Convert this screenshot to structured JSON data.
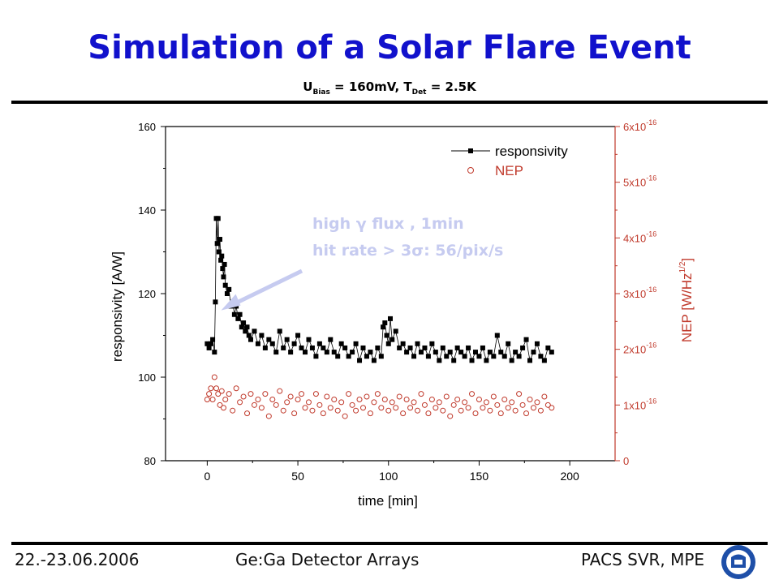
{
  "header": {
    "title": "Simulation of a Solar Flare Event",
    "subtitle_u": "U",
    "subtitle_u_sub": "Bias",
    "subtitle_mid": " = 160mV, T",
    "subtitle_t_sub": "Det",
    "subtitle_end": " = 2.5K"
  },
  "footer": {
    "date": "22.-23.06.2006",
    "center": "Ge:Ga Detector Arrays",
    "right": "PACS SVR, MPE"
  },
  "colors": {
    "title": "#1111cc",
    "responsivity": "#000000",
    "nep": "#c0392b",
    "annotation": "#c6cbf0"
  },
  "chart_data": {
    "type": "scatter",
    "xlabel": "time [min]",
    "ylabel_left": "responsivity [A/W]",
    "ylabel_right": "NEP [W/Hz",
    "ylabel_right_sup": "1/2",
    "ylabel_right_end": "]",
    "xlim": [
      -23,
      225
    ],
    "ylim_left": [
      80,
      160
    ],
    "ylim_right": [
      0,
      6e-16
    ],
    "x_ticks": [
      0,
      50,
      100,
      150,
      200
    ],
    "x_tick_labels": [
      "0",
      "50",
      "100",
      "150",
      "200"
    ],
    "y_left_ticks": [
      80,
      100,
      120,
      140,
      160
    ],
    "y_left_tick_labels": [
      "80",
      "100",
      "120",
      "140",
      "160"
    ],
    "y_right_tick_labels": [
      {
        "mant": "0",
        "exp": ""
      },
      {
        "mant": "1x10",
        "exp": "-16"
      },
      {
        "mant": "2x10",
        "exp": "-16"
      },
      {
        "mant": "3x10",
        "exp": "-16"
      },
      {
        "mant": "4x10",
        "exp": "-16"
      },
      {
        "mant": "5x10",
        "exp": "-16"
      },
      {
        "mant": "6x10",
        "exp": "-16"
      }
    ],
    "annotation": {
      "line1": "high γ flux , 1min",
      "line2": "hit rate > 3σ: 56/pix/s",
      "arrow_to": [
        5,
        116
      ]
    },
    "legend": {
      "placement": "top-right",
      "entries": [
        "responsivity",
        "NEP"
      ]
    },
    "series": [
      {
        "name": "responsivity",
        "marker": "filled-square",
        "line": true,
        "points": [
          [
            0,
            108
          ],
          [
            1,
            107
          ],
          [
            2,
            108
          ],
          [
            3,
            109
          ],
          [
            4,
            106
          ],
          [
            4.5,
            118
          ],
          [
            5,
            138
          ],
          [
            5.5,
            132
          ],
          [
            6,
            138
          ],
          [
            6.5,
            130
          ],
          [
            7,
            133
          ],
          [
            7.5,
            128
          ],
          [
            8,
            129
          ],
          [
            8.5,
            126
          ],
          [
            9,
            124
          ],
          [
            9.5,
            127
          ],
          [
            10,
            122
          ],
          [
            11,
            120
          ],
          [
            12,
            121
          ],
          [
            13,
            117
          ],
          [
            14,
            118
          ],
          [
            15,
            115
          ],
          [
            16,
            117
          ],
          [
            17,
            114
          ],
          [
            18,
            115
          ],
          [
            19,
            112
          ],
          [
            20,
            113
          ],
          [
            21,
            111
          ],
          [
            22,
            112
          ],
          [
            23,
            110
          ],
          [
            24,
            109
          ],
          [
            26,
            111
          ],
          [
            28,
            108
          ],
          [
            30,
            110
          ],
          [
            32,
            107
          ],
          [
            34,
            109
          ],
          [
            36,
            108
          ],
          [
            38,
            106
          ],
          [
            40,
            111
          ],
          [
            42,
            107
          ],
          [
            44,
            109
          ],
          [
            46,
            106
          ],
          [
            48,
            108
          ],
          [
            50,
            110
          ],
          [
            52,
            107
          ],
          [
            54,
            106
          ],
          [
            56,
            109
          ],
          [
            58,
            107
          ],
          [
            60,
            105
          ],
          [
            62,
            108
          ],
          [
            64,
            107
          ],
          [
            66,
            106
          ],
          [
            68,
            109
          ],
          [
            70,
            106
          ],
          [
            72,
            105
          ],
          [
            74,
            108
          ],
          [
            76,
            107
          ],
          [
            78,
            105
          ],
          [
            80,
            106
          ],
          [
            82,
            108
          ],
          [
            84,
            104
          ],
          [
            86,
            107
          ],
          [
            88,
            105
          ],
          [
            90,
            106
          ],
          [
            92,
            104
          ],
          [
            94,
            107
          ],
          [
            96,
            105
          ],
          [
            97,
            112
          ],
          [
            98,
            113
          ],
          [
            99,
            110
          ],
          [
            100,
            108
          ],
          [
            101,
            114
          ],
          [
            102,
            109
          ],
          [
            104,
            111
          ],
          [
            106,
            107
          ],
          [
            108,
            108
          ],
          [
            110,
            106
          ],
          [
            112,
            107
          ],
          [
            114,
            105
          ],
          [
            116,
            108
          ],
          [
            118,
            106
          ],
          [
            120,
            107
          ],
          [
            122,
            105
          ],
          [
            124,
            108
          ],
          [
            126,
            106
          ],
          [
            128,
            104
          ],
          [
            130,
            107
          ],
          [
            132,
            105
          ],
          [
            134,
            106
          ],
          [
            136,
            104
          ],
          [
            138,
            107
          ],
          [
            140,
            106
          ],
          [
            142,
            105
          ],
          [
            144,
            107
          ],
          [
            146,
            104
          ],
          [
            148,
            106
          ],
          [
            150,
            105
          ],
          [
            152,
            107
          ],
          [
            154,
            104
          ],
          [
            156,
            106
          ],
          [
            158,
            105
          ],
          [
            160,
            110
          ],
          [
            162,
            106
          ],
          [
            164,
            105
          ],
          [
            166,
            108
          ],
          [
            168,
            104
          ],
          [
            170,
            106
          ],
          [
            172,
            105
          ],
          [
            174,
            107
          ],
          [
            176,
            109
          ],
          [
            178,
            104
          ],
          [
            180,
            106
          ],
          [
            182,
            108
          ],
          [
            184,
            105
          ],
          [
            186,
            104
          ],
          [
            188,
            107
          ],
          [
            190,
            106
          ]
        ]
      },
      {
        "name": "NEP",
        "marker": "open-circle",
        "line": false,
        "points": [
          [
            0,
            1.1e-16
          ],
          [
            1,
            1.2e-16
          ],
          [
            2,
            1.3e-16
          ],
          [
            3,
            1.1e-16
          ],
          [
            4,
            1.5e-16
          ],
          [
            5,
            1.3e-16
          ],
          [
            6,
            1.2e-16
          ],
          [
            7,
            1e-16
          ],
          [
            8,
            1.25e-16
          ],
          [
            9,
            9.5e-17
          ],
          [
            10,
            1.1e-16
          ],
          [
            12,
            1.2e-16
          ],
          [
            14,
            9e-17
          ],
          [
            16,
            1.3e-16
          ],
          [
            18,
            1.05e-16
          ],
          [
            20,
            1.15e-16
          ],
          [
            22,
            8.5e-17
          ],
          [
            24,
            1.2e-16
          ],
          [
            26,
            1e-16
          ],
          [
            28,
            1.1e-16
          ],
          [
            30,
            9.5e-17
          ],
          [
            32,
            1.2e-16
          ],
          [
            34,
            8e-17
          ],
          [
            36,
            1.1e-16
          ],
          [
            38,
            1e-16
          ],
          [
            40,
            1.25e-16
          ],
          [
            42,
            9e-17
          ],
          [
            44,
            1.05e-16
          ],
          [
            46,
            1.15e-16
          ],
          [
            48,
            8.5e-17
          ],
          [
            50,
            1.1e-16
          ],
          [
            52,
            1.2e-16
          ],
          [
            54,
            9.5e-17
          ],
          [
            56,
            1.05e-16
          ],
          [
            58,
            9e-17
          ],
          [
            60,
            1.2e-16
          ],
          [
            62,
            1e-16
          ],
          [
            64,
            8.5e-17
          ],
          [
            66,
            1.15e-16
          ],
          [
            68,
            9.5e-17
          ],
          [
            70,
            1.1e-16
          ],
          [
            72,
            9e-17
          ],
          [
            74,
            1.05e-16
          ],
          [
            76,
            8e-17
          ],
          [
            78,
            1.2e-16
          ],
          [
            80,
            1e-16
          ],
          [
            82,
            9e-17
          ],
          [
            84,
            1.1e-16
          ],
          [
            86,
            9.5e-17
          ],
          [
            88,
            1.15e-16
          ],
          [
            90,
            8.5e-17
          ],
          [
            92,
            1.05e-16
          ],
          [
            94,
            1.2e-16
          ],
          [
            96,
            9.5e-17
          ],
          [
            98,
            1.1e-16
          ],
          [
            100,
            9e-17
          ],
          [
            102,
            1.05e-16
          ],
          [
            104,
            9.5e-17
          ],
          [
            106,
            1.15e-16
          ],
          [
            108,
            8.5e-17
          ],
          [
            110,
            1.1e-16
          ],
          [
            112,
            9.5e-17
          ],
          [
            114,
            1.05e-16
          ],
          [
            116,
            9e-17
          ],
          [
            118,
            1.2e-16
          ],
          [
            120,
            1e-16
          ],
          [
            122,
            8.5e-17
          ],
          [
            124,
            1.1e-16
          ],
          [
            126,
            9.5e-17
          ],
          [
            128,
            1.05e-16
          ],
          [
            130,
            9e-17
          ],
          [
            132,
            1.15e-16
          ],
          [
            134,
            8e-17
          ],
          [
            136,
            1e-16
          ],
          [
            138,
            1.1e-16
          ],
          [
            140,
            9e-17
          ],
          [
            142,
            1.05e-16
          ],
          [
            144,
            9.5e-17
          ],
          [
            146,
            1.2e-16
          ],
          [
            148,
            8.5e-17
          ],
          [
            150,
            1.1e-16
          ],
          [
            152,
            9.5e-17
          ],
          [
            154,
            1.05e-16
          ],
          [
            156,
            9e-17
          ],
          [
            158,
            1.15e-16
          ],
          [
            160,
            1e-16
          ],
          [
            162,
            8.5e-17
          ],
          [
            164,
            1.1e-16
          ],
          [
            166,
            9.5e-17
          ],
          [
            168,
            1.05e-16
          ],
          [
            170,
            9e-17
          ],
          [
            172,
            1.2e-16
          ],
          [
            174,
            1e-16
          ],
          [
            176,
            8.5e-17
          ],
          [
            178,
            1.1e-16
          ],
          [
            180,
            9.5e-17
          ],
          [
            182,
            1.05e-16
          ],
          [
            184,
            9e-17
          ],
          [
            186,
            1.15e-16
          ],
          [
            188,
            1e-16
          ],
          [
            190,
            9.5e-17
          ]
        ]
      }
    ]
  }
}
